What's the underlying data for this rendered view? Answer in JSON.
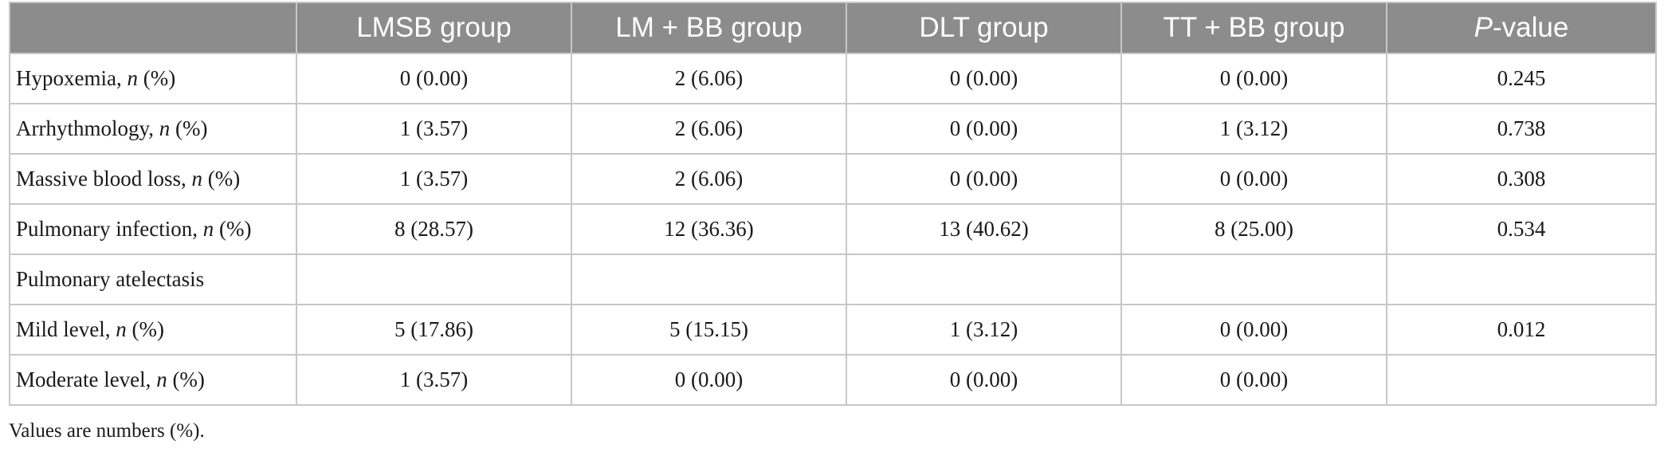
{
  "table": {
    "header": {
      "col0": "",
      "col1": "LMSB group",
      "col2": "LM + BB group",
      "col3": "DLT group",
      "col4": "TT + BB group",
      "col5_italic": "P",
      "col5_rest": "-value"
    },
    "rows": [
      {
        "label": "Hypoxemia, ",
        "n": "n",
        "pct": " (%)",
        "v1": "0 (0.00)",
        "v2": "2 (6.06)",
        "v3": "0 (0.00)",
        "v4": "0 (0.00)",
        "p": "0.245"
      },
      {
        "label": "Arrhythmology, ",
        "n": "n",
        "pct": " (%)",
        "v1": "1 (3.57)",
        "v2": "2 (6.06)",
        "v3": "0 (0.00)",
        "v4": "1 (3.12)",
        "p": "0.738"
      },
      {
        "label": "Massive blood loss, ",
        "n": "n",
        "pct": " (%)",
        "v1": "1 (3.57)",
        "v2": "2 (6.06)",
        "v3": "0 (0.00)",
        "v4": "0 (0.00)",
        "p": "0.308"
      },
      {
        "label": "Pulmonary infection, ",
        "n": "n",
        "pct": " (%)",
        "v1": "8 (28.57)",
        "v2": "12 (36.36)",
        "v3": "13 (40.62)",
        "v4": "8 (25.00)",
        "p": "0.534"
      },
      {
        "label": "Pulmonary atelectasis",
        "n": "",
        "pct": "",
        "v1": "",
        "v2": "",
        "v3": "",
        "v4": "",
        "p": ""
      },
      {
        "label": "Mild level, ",
        "n": "n",
        "pct": " (%)",
        "v1": "5 (17.86)",
        "v2": "5 (15.15)",
        "v3": "1 (3.12)",
        "v4": "0 (0.00)",
        "p": "0.012"
      },
      {
        "label": "Moderate level, ",
        "n": "n",
        "pct": " (%)",
        "v1": "1 (3.57)",
        "v2": "0 (0.00)",
        "v3": "0 (0.00)",
        "v4": "0 (0.00)",
        "p": ""
      }
    ]
  },
  "footnote": "Values are numbers (%).",
  "colors": {
    "header_bg": "#8c8c8c",
    "header_text": "#ffffff",
    "border": "#c7c7c7",
    "body_text": "#1a1a1a"
  }
}
